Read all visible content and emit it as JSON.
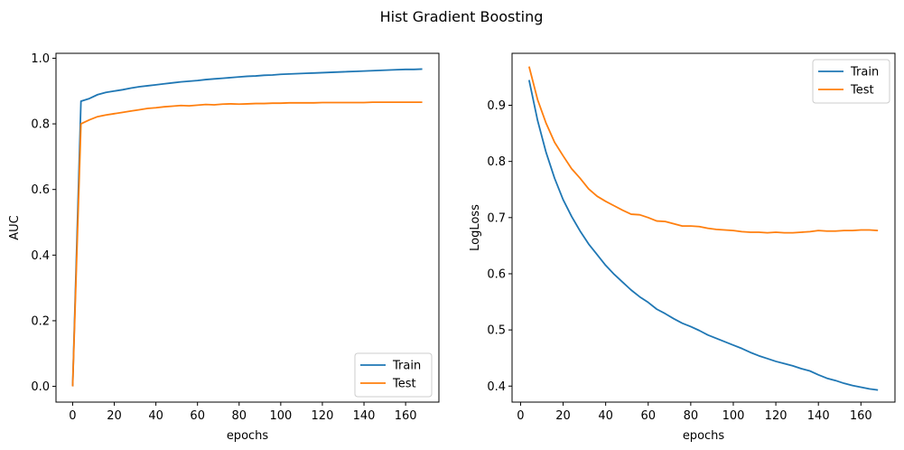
{
  "title": "Hist Gradient Boosting",
  "colors": {
    "train": "#1f77b4",
    "test": "#ff7f0e"
  },
  "chart_data": [
    {
      "type": "line",
      "xlabel": "epochs",
      "ylabel": "AUC",
      "xlim": [
        -8,
        176
      ],
      "ylim": [
        -0.048,
        1.015
      ],
      "xticks": [
        0,
        20,
        40,
        60,
        80,
        100,
        120,
        140,
        160
      ],
      "yticks": [
        0.0,
        0.2,
        0.4,
        0.6,
        0.8,
        1.0
      ],
      "ytick_labels": [
        "0.0",
        "0.2",
        "0.4",
        "0.6",
        "0.8",
        "1.0"
      ],
      "legend_position": "lower-right",
      "series": [
        {
          "name": "Train",
          "color_key": "train",
          "x": [
            0,
            4,
            8,
            12,
            16,
            20,
            24,
            28,
            32,
            36,
            40,
            44,
            48,
            52,
            56,
            60,
            64,
            68,
            72,
            76,
            80,
            84,
            88,
            92,
            96,
            100,
            104,
            108,
            112,
            116,
            120,
            124,
            128,
            132,
            136,
            140,
            144,
            148,
            152,
            156,
            160,
            164,
            168
          ],
          "values": [
            0.0,
            0.869,
            0.877,
            0.889,
            0.896,
            0.9,
            0.904,
            0.909,
            0.913,
            0.916,
            0.919,
            0.922,
            0.925,
            0.928,
            0.93,
            0.932,
            0.935,
            0.937,
            0.939,
            0.941,
            0.943,
            0.945,
            0.946,
            0.948,
            0.949,
            0.951,
            0.952,
            0.953,
            0.954,
            0.955,
            0.956,
            0.957,
            0.958,
            0.959,
            0.96,
            0.961,
            0.962,
            0.963,
            0.964,
            0.965,
            0.966,
            0.966,
            0.967
          ]
        },
        {
          "name": "Test",
          "color_key": "test",
          "x": [
            0,
            4,
            8,
            12,
            16,
            20,
            24,
            28,
            32,
            36,
            40,
            44,
            48,
            52,
            56,
            60,
            64,
            68,
            72,
            76,
            80,
            84,
            88,
            92,
            96,
            100,
            104,
            108,
            112,
            116,
            120,
            124,
            128,
            132,
            136,
            140,
            144,
            148,
            152,
            156,
            160,
            164,
            168
          ],
          "values": [
            0.0,
            0.8,
            0.812,
            0.822,
            0.827,
            0.831,
            0.835,
            0.839,
            0.843,
            0.847,
            0.849,
            0.852,
            0.854,
            0.856,
            0.855,
            0.857,
            0.859,
            0.858,
            0.86,
            0.861,
            0.86,
            0.861,
            0.862,
            0.862,
            0.863,
            0.863,
            0.864,
            0.864,
            0.864,
            0.864,
            0.865,
            0.865,
            0.865,
            0.865,
            0.865,
            0.865,
            0.866,
            0.866,
            0.866,
            0.866,
            0.866,
            0.866,
            0.866
          ]
        }
      ]
    },
    {
      "type": "line",
      "xlabel": "epochs",
      "ylabel": "LogLoss",
      "xlim": [
        -4,
        176
      ],
      "ylim": [
        0.3715,
        0.9925
      ],
      "xticks": [
        0,
        20,
        40,
        60,
        80,
        100,
        120,
        140,
        160
      ],
      "yticks": [
        0.4,
        0.5,
        0.6,
        0.7,
        0.8,
        0.9
      ],
      "ytick_labels": [
        "0.4",
        "0.5",
        "0.6",
        "0.7",
        "0.8",
        "0.9"
      ],
      "legend_position": "upper-right",
      "series": [
        {
          "name": "Train",
          "color_key": "train",
          "x": [
            4,
            8,
            12,
            16,
            20,
            24,
            28,
            32,
            36,
            40,
            44,
            48,
            52,
            56,
            60,
            64,
            68,
            72,
            76,
            80,
            84,
            88,
            92,
            96,
            100,
            104,
            108,
            112,
            116,
            120,
            124,
            128,
            132,
            136,
            140,
            144,
            148,
            152,
            156,
            160,
            164,
            168
          ],
          "values": [
            0.945,
            0.873,
            0.816,
            0.77,
            0.732,
            0.702,
            0.676,
            0.653,
            0.634,
            0.615,
            0.599,
            0.585,
            0.571,
            0.559,
            0.549,
            0.537,
            0.529,
            0.52,
            0.512,
            0.506,
            0.499,
            0.491,
            0.485,
            0.479,
            0.473,
            0.467,
            0.46,
            0.454,
            0.449,
            0.444,
            0.44,
            0.436,
            0.431,
            0.427,
            0.42,
            0.414,
            0.41,
            0.405,
            0.401,
            0.398,
            0.395,
            0.393
          ]
        },
        {
          "name": "Test",
          "color_key": "test",
          "x": [
            4,
            8,
            12,
            16,
            20,
            24,
            28,
            32,
            36,
            40,
            44,
            48,
            52,
            56,
            60,
            64,
            68,
            72,
            76,
            80,
            84,
            88,
            92,
            96,
            100,
            104,
            108,
            112,
            116,
            120,
            124,
            128,
            132,
            136,
            140,
            144,
            148,
            152,
            156,
            160,
            164,
            168
          ],
          "values": [
            0.969,
            0.91,
            0.868,
            0.834,
            0.81,
            0.787,
            0.77,
            0.751,
            0.738,
            0.729,
            0.721,
            0.713,
            0.706,
            0.705,
            0.7,
            0.694,
            0.693,
            0.689,
            0.685,
            0.685,
            0.684,
            0.681,
            0.679,
            0.678,
            0.677,
            0.675,
            0.674,
            0.674,
            0.673,
            0.674,
            0.673,
            0.673,
            0.674,
            0.675,
            0.677,
            0.676,
            0.676,
            0.677,
            0.677,
            0.678,
            0.678,
            0.677
          ]
        }
      ]
    }
  ]
}
